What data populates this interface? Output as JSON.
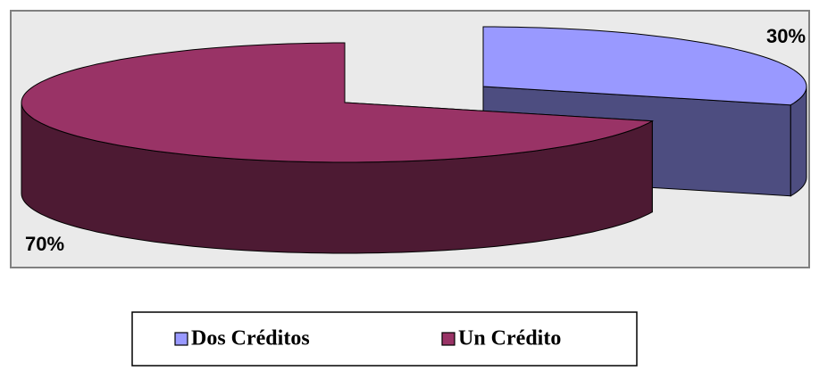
{
  "chart_data": {
    "type": "pie",
    "categories": [
      "Dos Créditos",
      "Un Crédito"
    ],
    "values": [
      30,
      70
    ],
    "value_labels": [
      "30%",
      "70%"
    ],
    "colors": [
      "#9999ff",
      "#993366"
    ],
    "legend": "bottom"
  }
}
